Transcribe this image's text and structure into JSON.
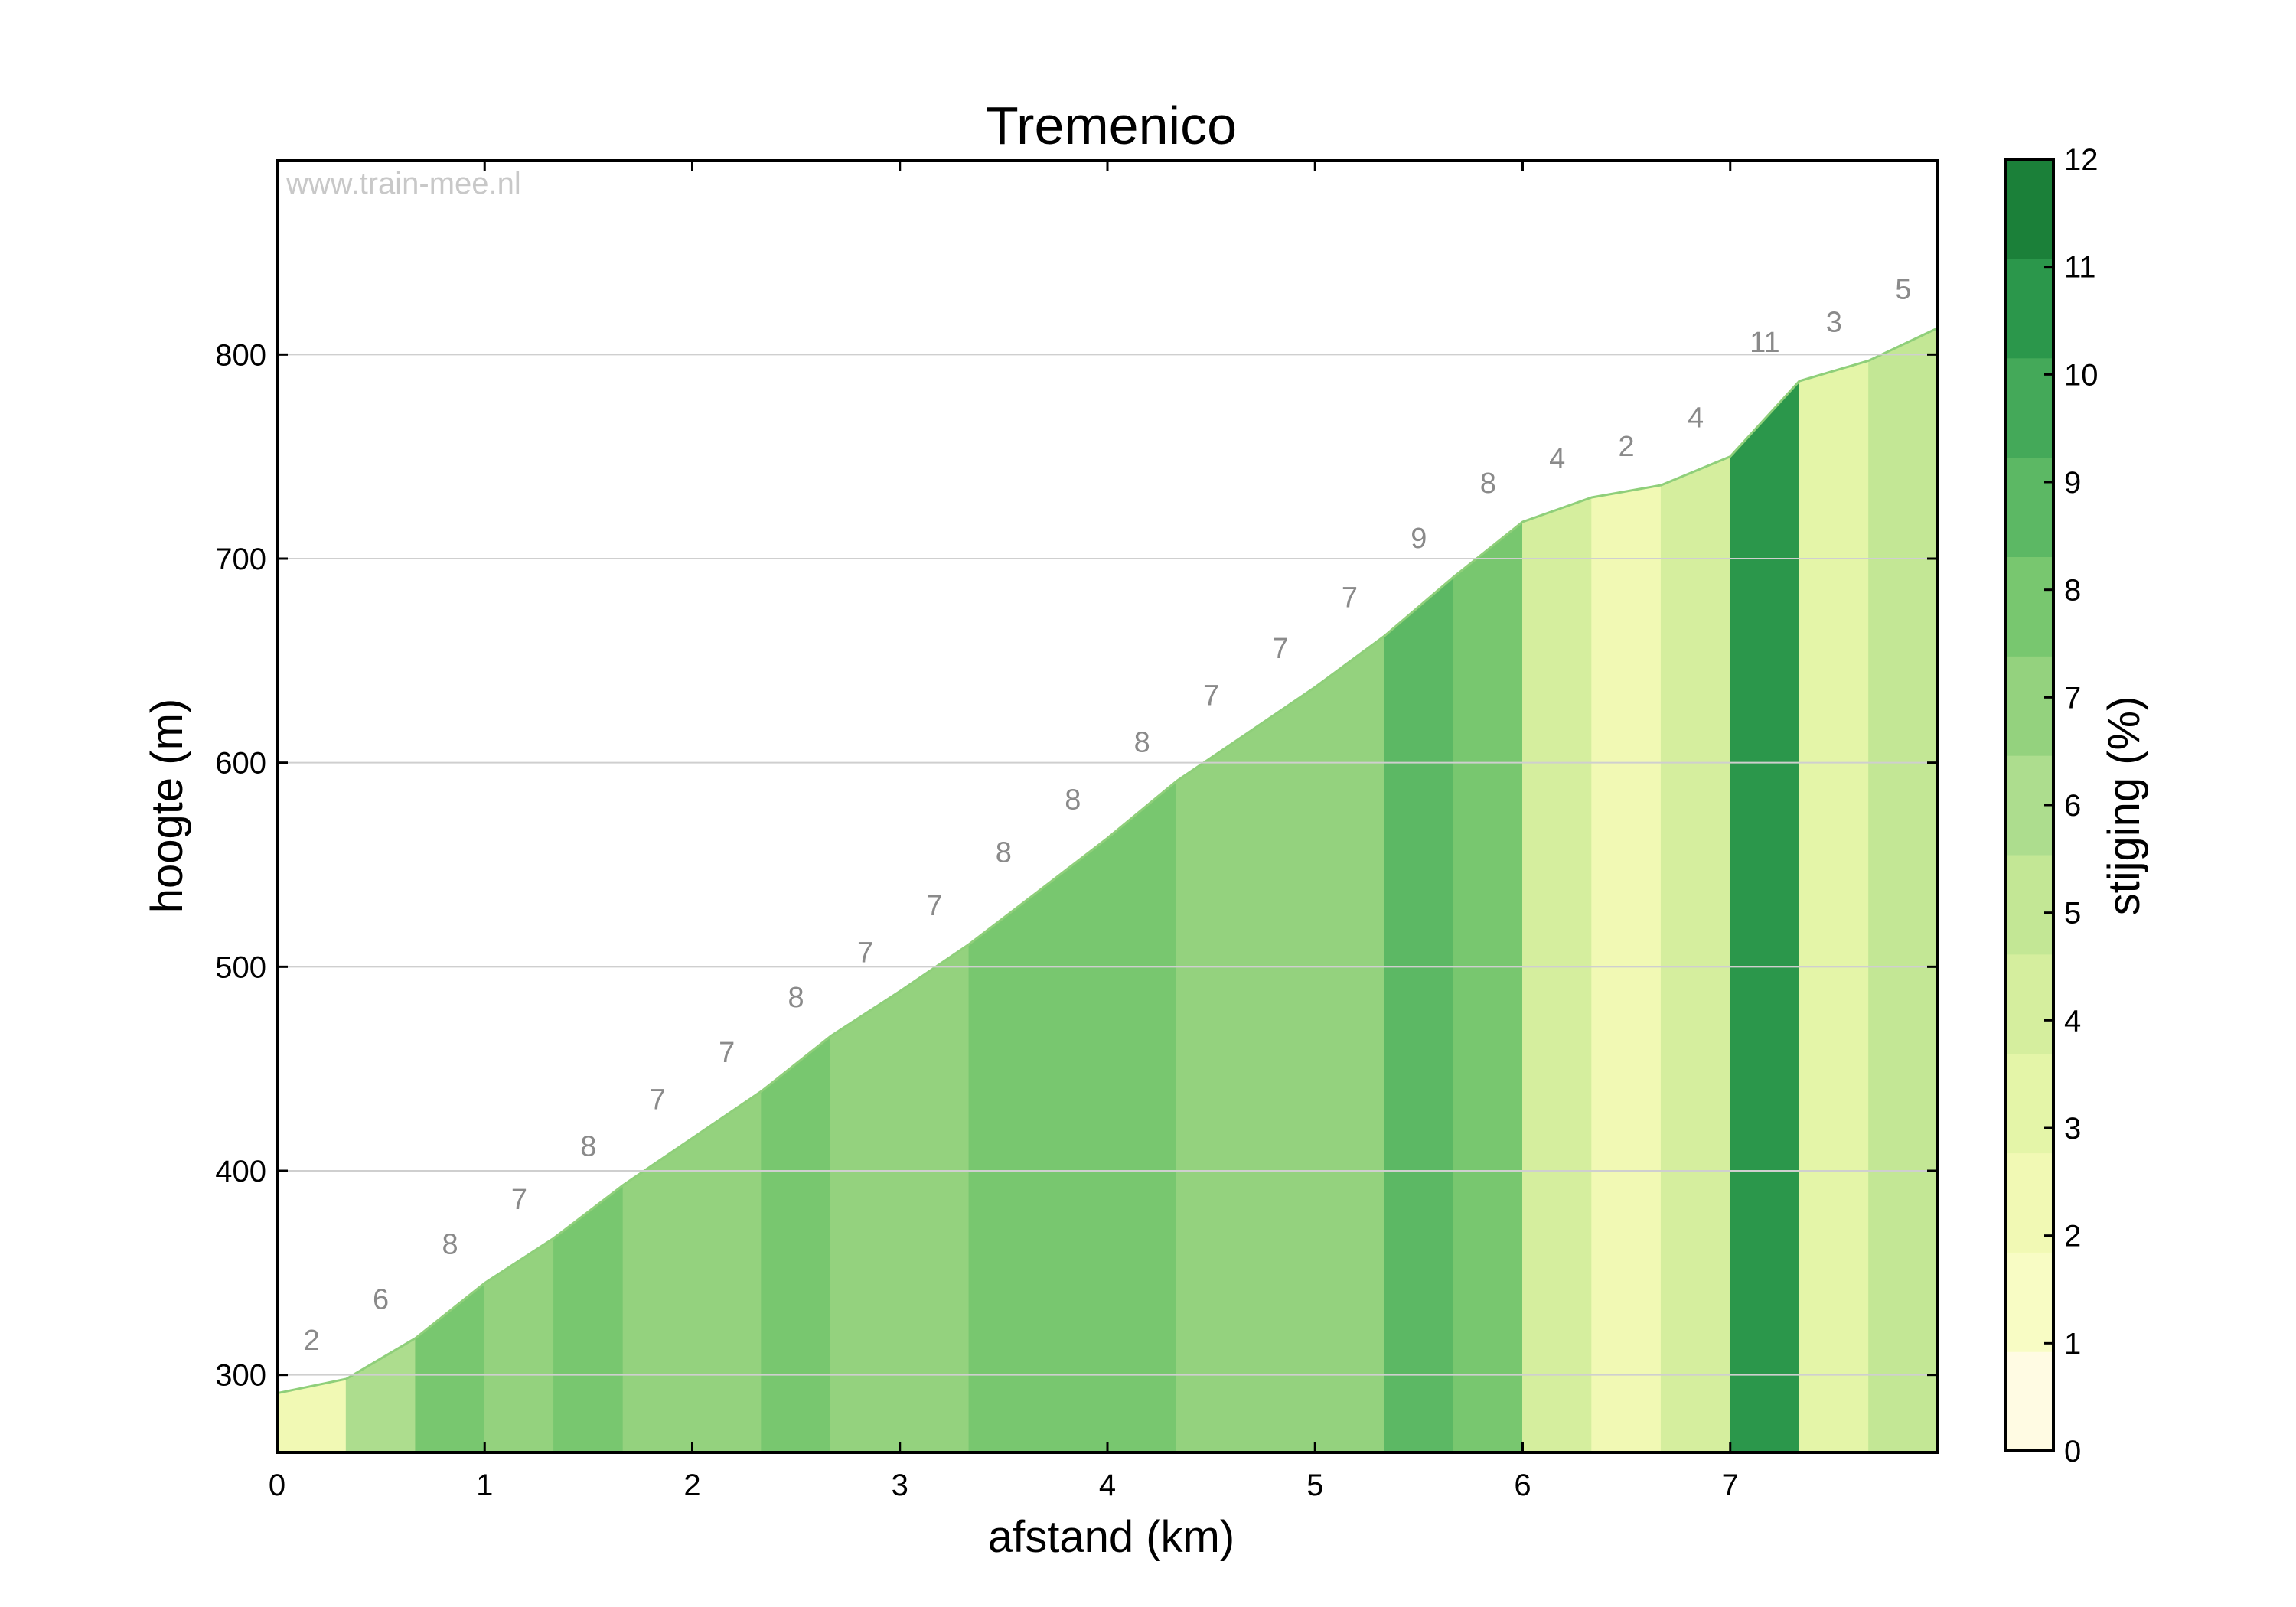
{
  "chart_data": {
    "type": "area",
    "title": "Tremenico",
    "xlabel": "afstand (km)",
    "ylabel": "hoogte (m)",
    "watermark": "www.train-mee.nl",
    "xlim": [
      0,
      8
    ],
    "ylim": [
      262,
      895
    ],
    "x_ticks": [
      "0",
      "1",
      "2",
      "3",
      "4",
      "5",
      "6",
      "7"
    ],
    "y_ticks": [
      "300",
      "400",
      "500",
      "600",
      "700",
      "800"
    ],
    "grid": "horizontal",
    "segments": [
      {
        "x0": 0.0,
        "x1": 0.333,
        "y0": 291,
        "y1": 298,
        "grade": 2
      },
      {
        "x0": 0.333,
        "x1": 0.667,
        "y0": 298,
        "y1": 318,
        "grade": 6
      },
      {
        "x0": 0.667,
        "x1": 1.0,
        "y0": 318,
        "y1": 345,
        "grade": 8
      },
      {
        "x0": 1.0,
        "x1": 1.333,
        "y0": 345,
        "y1": 367,
        "grade": 7
      },
      {
        "x0": 1.333,
        "x1": 1.667,
        "y0": 367,
        "y1": 393,
        "grade": 8
      },
      {
        "x0": 1.667,
        "x1": 2.0,
        "y0": 393,
        "y1": 416,
        "grade": 7
      },
      {
        "x0": 2.0,
        "x1": 2.333,
        "y0": 416,
        "y1": 439,
        "grade": 7
      },
      {
        "x0": 2.333,
        "x1": 2.667,
        "y0": 439,
        "y1": 466,
        "grade": 8
      },
      {
        "x0": 2.667,
        "x1": 3.0,
        "y0": 466,
        "y1": 488,
        "grade": 7
      },
      {
        "x0": 3.0,
        "x1": 3.333,
        "y0": 488,
        "y1": 511,
        "grade": 7
      },
      {
        "x0": 3.333,
        "x1": 3.667,
        "y0": 511,
        "y1": 537,
        "grade": 8
      },
      {
        "x0": 3.667,
        "x1": 4.0,
        "y0": 537,
        "y1": 563,
        "grade": 8
      },
      {
        "x0": 4.0,
        "x1": 4.333,
        "y0": 563,
        "y1": 591,
        "grade": 8
      },
      {
        "x0": 4.333,
        "x1": 4.667,
        "y0": 591,
        "y1": 614,
        "grade": 7
      },
      {
        "x0": 4.667,
        "x1": 5.0,
        "y0": 614,
        "y1": 637,
        "grade": 7
      },
      {
        "x0": 5.0,
        "x1": 5.333,
        "y0": 637,
        "y1": 662,
        "grade": 7
      },
      {
        "x0": 5.333,
        "x1": 5.667,
        "y0": 662,
        "y1": 691,
        "grade": 9
      },
      {
        "x0": 5.667,
        "x1": 6.0,
        "y0": 691,
        "y1": 718,
        "grade": 8
      },
      {
        "x0": 6.0,
        "x1": 6.333,
        "y0": 718,
        "y1": 730,
        "grade": 4
      },
      {
        "x0": 6.333,
        "x1": 6.667,
        "y0": 730,
        "y1": 736,
        "grade": 2
      },
      {
        "x0": 6.667,
        "x1": 7.0,
        "y0": 736,
        "y1": 750,
        "grade": 4
      },
      {
        "x0": 7.0,
        "x1": 7.333,
        "y0": 750,
        "y1": 787,
        "grade": 11
      },
      {
        "x0": 7.333,
        "x1": 7.667,
        "y0": 787,
        "y1": 797,
        "grade": 3
      },
      {
        "x0": 7.667,
        "x1": 8.0,
        "y0": 797,
        "y1": 813,
        "grade": 5
      }
    ],
    "colorbar": {
      "label": "stijging (%)",
      "range": [
        0,
        12
      ],
      "ticks": [
        "0",
        "1",
        "2",
        "3",
        "4",
        "5",
        "6",
        "7",
        "8",
        "9",
        "10",
        "11",
        "12"
      ],
      "colors": [
        "#fffbe3",
        "#f8fcc4",
        "#f1f9b4",
        "#e4f5a8",
        "#d5ee9e",
        "#c3e795",
        "#addd8e",
        "#94d27e",
        "#78c76f",
        "#5cb864",
        "#44a959",
        "#2b974b",
        "#1b8039"
      ]
    }
  }
}
